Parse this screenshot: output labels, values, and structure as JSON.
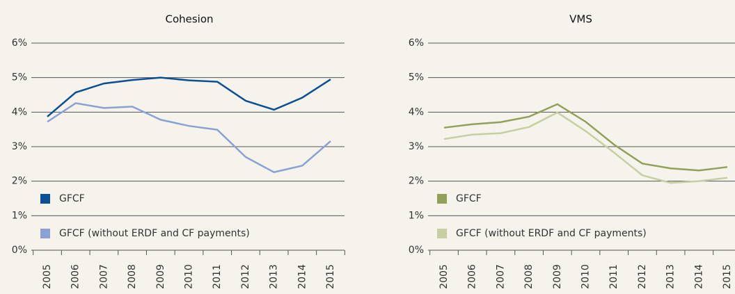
{
  "chart_data": [
    {
      "type": "line",
      "title": "Cohesion",
      "categories": [
        "2005",
        "2006",
        "2007",
        "2008",
        "2009",
        "2010",
        "2011",
        "2012",
        "2013",
        "2014",
        "2015"
      ],
      "series": [
        {
          "name": "GFCF",
          "color": "#0b4f95",
          "values": [
            3.87,
            4.57,
            4.83,
            4.93,
            5.0,
            4.92,
            4.88,
            4.33,
            4.07,
            4.42,
            4.95
          ]
        },
        {
          "name": "GFCF (without ERDF and CF payments)",
          "color": "#8ba1d4",
          "values": [
            3.72,
            4.26,
            4.12,
            4.16,
            3.78,
            3.6,
            3.49,
            2.7,
            2.26,
            2.45,
            3.16
          ]
        }
      ],
      "ylim": [
        0,
        6
      ],
      "yticks": [
        {
          "value": 0,
          "label": "0%"
        },
        {
          "value": 1,
          "label": "1%"
        },
        {
          "value": 2,
          "label": "2%"
        },
        {
          "value": 3,
          "label": "3%"
        },
        {
          "value": 4,
          "label": "4%"
        },
        {
          "value": 5,
          "label": "5%"
        },
        {
          "value": 6,
          "label": "6%"
        }
      ],
      "grid": true
    },
    {
      "type": "line",
      "title": "VMS",
      "categories": [
        "2005",
        "2006",
        "2007",
        "2008",
        "2009",
        "2010",
        "2011",
        "2012",
        "2013",
        "2014",
        "2015"
      ],
      "series": [
        {
          "name": "GFCF",
          "color": "#93a05a",
          "values": [
            3.55,
            3.65,
            3.71,
            3.87,
            4.23,
            3.72,
            3.06,
            2.51,
            2.37,
            2.31,
            2.41
          ]
        },
        {
          "name": "GFCF (without ERDF and CF payments)",
          "color": "#c8cda2",
          "values": [
            3.22,
            3.35,
            3.39,
            3.57,
            3.99,
            3.45,
            2.83,
            2.17,
            1.95,
            2.0,
            2.1
          ]
        }
      ],
      "ylim": [
        0,
        6
      ],
      "yticks": [
        {
          "value": 0,
          "label": "0%"
        },
        {
          "value": 1,
          "label": "1%"
        },
        {
          "value": 2,
          "label": "2%"
        },
        {
          "value": 3,
          "label": "3%"
        },
        {
          "value": 4,
          "label": "4%"
        },
        {
          "value": 5,
          "label": "5%"
        },
        {
          "value": 6,
          "label": "6%"
        }
      ],
      "grid": true
    }
  ]
}
